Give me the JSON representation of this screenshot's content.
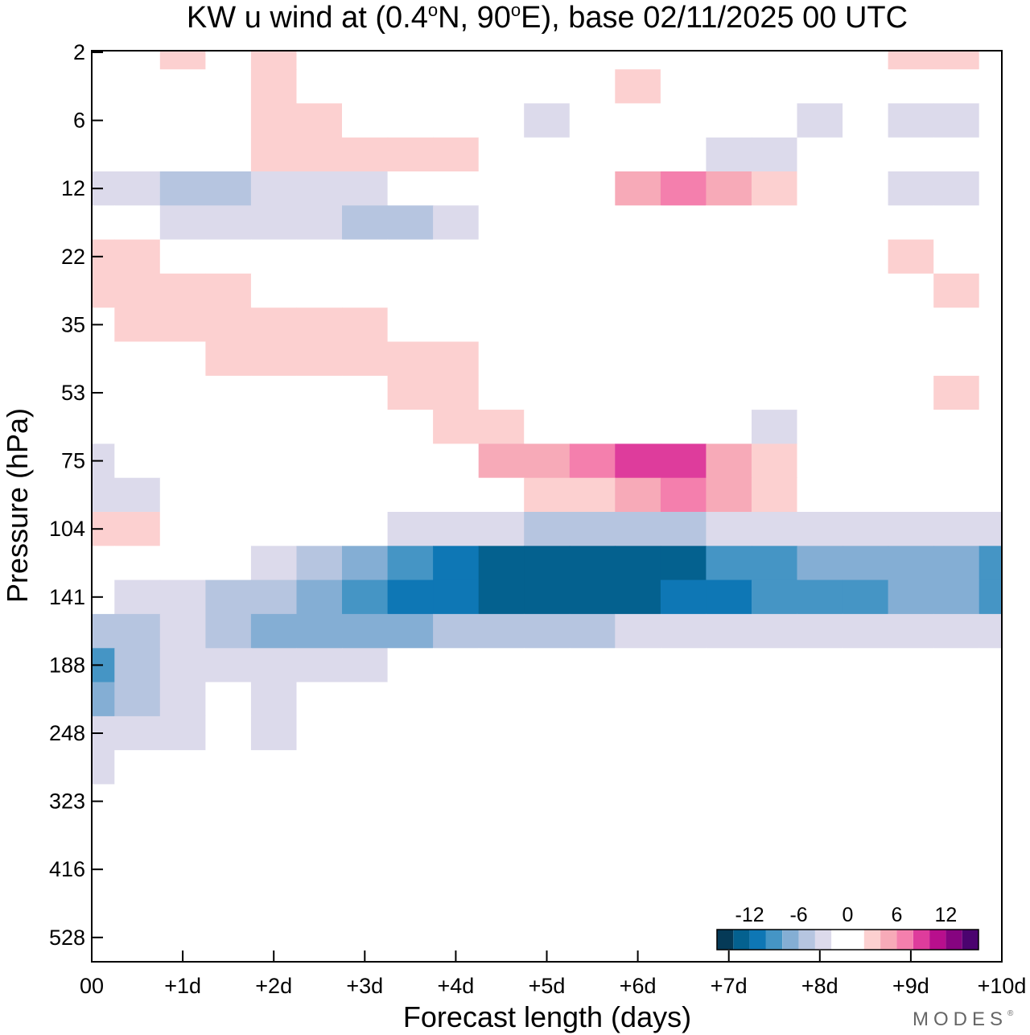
{
  "chart_data": {
    "type": "heatmap",
    "title": "KW u wind at (0.4°N, 90°E),  base 02/11/2025  00 UTC",
    "title_parts": {
      "prefix": "KW u wind at (0.4",
      "deg1": "o",
      "middle": "N, 90",
      "deg2": "o",
      "suffix": "E),  base 02/11/2025  00 UTC"
    },
    "xlabel": "Forecast length (days)",
    "ylabel": "Pressure (hPa)",
    "xlim": [
      0,
      10
    ],
    "x_ticks": [
      {
        "value": 0,
        "label": "00"
      },
      {
        "value": 1,
        "label": "+1d"
      },
      {
        "value": 2,
        "label": "+2d"
      },
      {
        "value": 3,
        "label": "+3d"
      },
      {
        "value": 4,
        "label": "+4d"
      },
      {
        "value": 5,
        "label": "+5d"
      },
      {
        "value": 6,
        "label": "+6d"
      },
      {
        "value": 7,
        "label": "+7d"
      },
      {
        "value": 8,
        "label": "+8d"
      },
      {
        "value": 9,
        "label": "+9d"
      },
      {
        "value": 10,
        "label": "+10d"
      }
    ],
    "y_levels": [
      "2",
      "6",
      "12",
      "22",
      "35",
      "53",
      "75",
      "104",
      "141",
      "188",
      "248",
      "323",
      "416",
      "528"
    ],
    "x": [
      0,
      0.5,
      1,
      1.5,
      2,
      2.5,
      3,
      3.5,
      4,
      4.5,
      5,
      5.5,
      6,
      6.5,
      7,
      7.5,
      8,
      8.5,
      9,
      9.5,
      10
    ],
    "y": [
      "2",
      "4",
      "6",
      "9",
      "12",
      "17",
      "22",
      "28",
      "35",
      "44",
      "53",
      "64",
      "75",
      "90",
      "104",
      "122",
      "141",
      "164",
      "188",
      "218",
      "248",
      "285",
      "323",
      "370",
      "416",
      "472",
      "528",
      "560"
    ],
    "z": [
      [
        0,
        1,
        2,
        1,
        2,
        1,
        0,
        0,
        0,
        -1,
        0,
        1,
        1,
        0,
        -1,
        0,
        -1,
        0,
        2,
        2,
        0
      ],
      [
        -1,
        0,
        0,
        0,
        2,
        1,
        -1,
        0,
        -1,
        -1,
        -2,
        -1,
        2,
        1,
        -1,
        -1,
        -2,
        -2,
        -2,
        -2,
        0
      ],
      [
        -2,
        -1,
        0,
        0,
        3,
        2,
        1,
        0,
        0,
        -2,
        -3,
        -2,
        0,
        0,
        0,
        -2,
        -3,
        -2,
        -3,
        -3,
        -1
      ],
      [
        0,
        0,
        0,
        0,
        2,
        3,
        3,
        3,
        2,
        0,
        0,
        0,
        -1,
        -2,
        -3,
        -3,
        -2,
        0,
        0,
        0,
        0
      ],
      [
        -3,
        -4,
        -5,
        -5,
        -4,
        -4,
        -3,
        -2,
        -1,
        -1,
        0,
        1,
        4,
        6,
        5,
        3,
        1,
        -2,
        -3,
        -3,
        -1
      ],
      [
        -2,
        -2,
        -3,
        -3,
        -4,
        -4,
        -5,
        -5,
        -3,
        -2,
        -2,
        -2,
        -1,
        0,
        0,
        0,
        0,
        1,
        -1,
        -2,
        -2
      ],
      [
        2,
        2,
        0,
        0,
        0,
        -1,
        -1,
        -2,
        -1,
        0,
        -1,
        -1,
        -1,
        -1,
        -1,
        0,
        0,
        1,
        2,
        1,
        0
      ],
      [
        3,
        3,
        2,
        2,
        1,
        0,
        0,
        -1,
        -1,
        0,
        0,
        0,
        -1,
        -1,
        -1,
        0,
        0,
        1,
        1,
        2,
        1
      ],
      [
        1,
        3,
        3,
        3,
        3,
        3,
        3,
        1,
        0,
        0,
        0,
        0,
        -1,
        -1,
        0,
        0,
        0,
        0,
        1,
        1,
        1
      ],
      [
        0,
        1,
        1,
        2,
        2,
        2,
        3,
        2,
        2,
        0,
        0,
        0,
        0,
        0,
        -1,
        0,
        0,
        0,
        1,
        1,
        0
      ],
      [
        -1,
        0,
        0,
        0,
        0,
        1,
        1,
        3,
        2,
        1,
        0,
        0,
        0,
        0,
        0,
        0,
        0,
        1,
        1,
        2,
        0
      ],
      [
        -2,
        -2,
        -1,
        -1,
        -1,
        0,
        0,
        1,
        3,
        2,
        1,
        0,
        0,
        -1,
        -2,
        -3,
        -2,
        -1,
        0,
        0,
        0
      ],
      [
        -3,
        -2,
        -2,
        -2,
        -1,
        0,
        -1,
        0,
        1,
        4,
        5,
        6,
        8,
        9,
        5,
        3,
        1,
        0,
        0,
        0,
        1
      ],
      [
        -3,
        -3,
        -2,
        -2,
        -1,
        -1,
        -1,
        0,
        0,
        1,
        2,
        3,
        5,
        6,
        4,
        2,
        1,
        0,
        0,
        0,
        0
      ],
      [
        3,
        2,
        0,
        0,
        0,
        -1,
        -2,
        -3,
        -3,
        -4,
        -5,
        -5,
        -5,
        -5,
        -4,
        -3,
        -3,
        -3,
        -3,
        -3,
        -3
      ],
      [
        0,
        0,
        -1,
        -1,
        -3,
        -5,
        -8,
        -9,
        -11,
        -14,
        -14,
        -14,
        -14,
        -13,
        -10,
        -9,
        -8,
        -8,
        -8,
        -8,
        -9
      ],
      [
        -2,
        -3,
        -3,
        -5,
        -6,
        -8,
        -10,
        -12,
        -12,
        -13,
        -13,
        -13,
        -13,
        -12,
        -11,
        -10,
        -9,
        -9,
        -8,
        -8,
        -9
      ],
      [
        -6,
        -5,
        -4,
        -5,
        -8,
        -8,
        -8,
        -7,
        -6,
        -5,
        -5,
        -5,
        -4,
        -4,
        -4,
        -4,
        -4,
        -3,
        -3,
        -3,
        -3
      ],
      [
        -9,
        -5,
        -4,
        -3,
        -4,
        -4,
        -3,
        -2,
        -2,
        -1,
        -1,
        -1,
        -1,
        -1,
        -1,
        -1,
        -1,
        -1,
        -1,
        -1,
        -1
      ],
      [
        -8,
        -5,
        -4,
        -1,
        -3,
        -2,
        -1,
        0,
        0,
        0,
        0,
        0,
        -1,
        -1,
        -1,
        -1,
        -1,
        -1,
        0,
        0,
        0
      ],
      [
        -4,
        -3,
        -3,
        -1,
        -3,
        -2,
        -1,
        0,
        0,
        0,
        -1,
        -1,
        -1,
        -1,
        -2,
        -1,
        -1,
        0,
        0,
        0,
        0
      ],
      [
        -3,
        -2,
        -2,
        -2,
        -2,
        -2,
        -2,
        -1,
        -1,
        0,
        0,
        -1,
        -1,
        -1,
        -1,
        -1,
        -1,
        0,
        0,
        0,
        0
      ],
      [
        -1,
        -1,
        -1,
        -1,
        -1,
        -1,
        -1,
        0,
        0,
        0,
        0,
        0,
        0,
        0,
        0,
        0,
        0,
        0,
        0,
        0,
        0
      ],
      [
        0,
        -1,
        -1,
        -1,
        0,
        0,
        0,
        0,
        0,
        0,
        0,
        0,
        0,
        0,
        0,
        0,
        0,
        0,
        0,
        0,
        0
      ],
      [
        0,
        0,
        0,
        0,
        0,
        0,
        0,
        0,
        0,
        0,
        0,
        0,
        0,
        0,
        0,
        0,
        0,
        0,
        0,
        0,
        0
      ],
      [
        1,
        1,
        0,
        0,
        0,
        0,
        0,
        0,
        0,
        0,
        0,
        0,
        0,
        0,
        0,
        0,
        0,
        0,
        0,
        0,
        0
      ],
      [
        1,
        1,
        1,
        1,
        0,
        0,
        0,
        0,
        0,
        0,
        0,
        0,
        0,
        0,
        0,
        0,
        0,
        0,
        0,
        0,
        0
      ],
      [
        1,
        1,
        1,
        1,
        1,
        0,
        0,
        0,
        0,
        0,
        0,
        0,
        0,
        0,
        0,
        0,
        0,
        0,
        0,
        0,
        0
      ]
    ],
    "legend": {
      "labels": [
        {
          "value": -12,
          "label": "-12"
        },
        {
          "value": -6,
          "label": "-6"
        },
        {
          "value": 0,
          "label": "0"
        },
        {
          "value": 6,
          "label": "6"
        },
        {
          "value": 12,
          "label": "12"
        }
      ],
      "bins": [
        {
          "from": -16,
          "to": -14,
          "color": "#053a57"
        },
        {
          "from": -14,
          "to": -12,
          "color": "#04618f"
        },
        {
          "from": -12,
          "to": -10,
          "color": "#0e77b5"
        },
        {
          "from": -10,
          "to": -8,
          "color": "#4595c5"
        },
        {
          "from": -8,
          "to": -6,
          "color": "#84aed4"
        },
        {
          "from": -6,
          "to": -4,
          "color": "#b6c5e0"
        },
        {
          "from": -4,
          "to": -2,
          "color": "#dcdaeb"
        },
        {
          "from": -2,
          "to": 2,
          "color": "#ffffff"
        },
        {
          "from": 2,
          "to": 4,
          "color": "#fcd0d0"
        },
        {
          "from": 4,
          "to": 6,
          "color": "#f7aab8"
        },
        {
          "from": 6,
          "to": 8,
          "color": "#f47fad"
        },
        {
          "from": 8,
          "to": 10,
          "color": "#de3c9c"
        },
        {
          "from": 10,
          "to": 12,
          "color": "#b80f8d"
        },
        {
          "from": 12,
          "to": 14,
          "color": "#860480"
        },
        {
          "from": 14,
          "to": 16,
          "color": "#4b036f"
        }
      ]
    }
  },
  "branding": {
    "name": "MODES",
    "mark": "®"
  }
}
